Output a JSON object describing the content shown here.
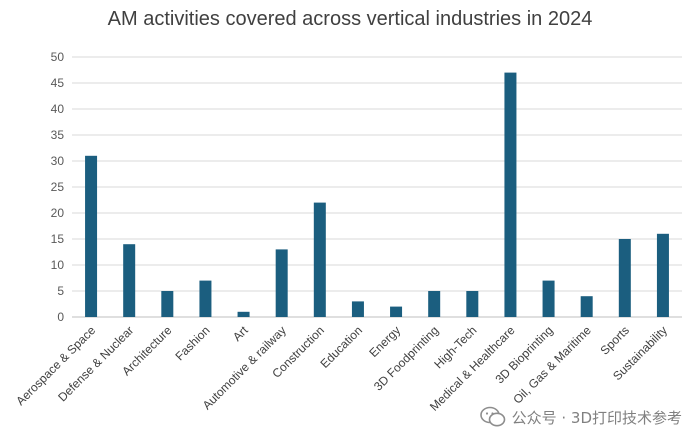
{
  "watermark": {
    "text": "公众号 · 3D打印技术参考"
  },
  "colors": {
    "bar": "#1b5e7f",
    "grid": "#d9d9d9",
    "axis": "#bfbfbf"
  },
  "chart_data": {
    "type": "bar",
    "title": "AM activities covered across vertical industries in 2024",
    "xlabel": "",
    "ylabel": "",
    "ylim": [
      0,
      50
    ],
    "yticks": [
      0,
      5,
      10,
      15,
      20,
      25,
      30,
      35,
      40,
      45,
      50
    ],
    "grid": true,
    "categories": [
      "Aerospace & Space",
      "Defense & Nuclear",
      "Architecture",
      "Fashion",
      "Art",
      "Automotive & railway",
      "Construction",
      "Education",
      "Energy",
      "3D Foodprinting",
      "High-Tech",
      "Medical & Healthcare",
      "3D Bioprinting",
      "Oil, Gas & Maritime",
      "Sports",
      "Sustainability"
    ],
    "values": [
      31,
      14,
      5,
      7,
      1,
      13,
      22,
      3,
      2,
      5,
      5,
      47,
      7,
      4,
      15,
      16
    ]
  }
}
